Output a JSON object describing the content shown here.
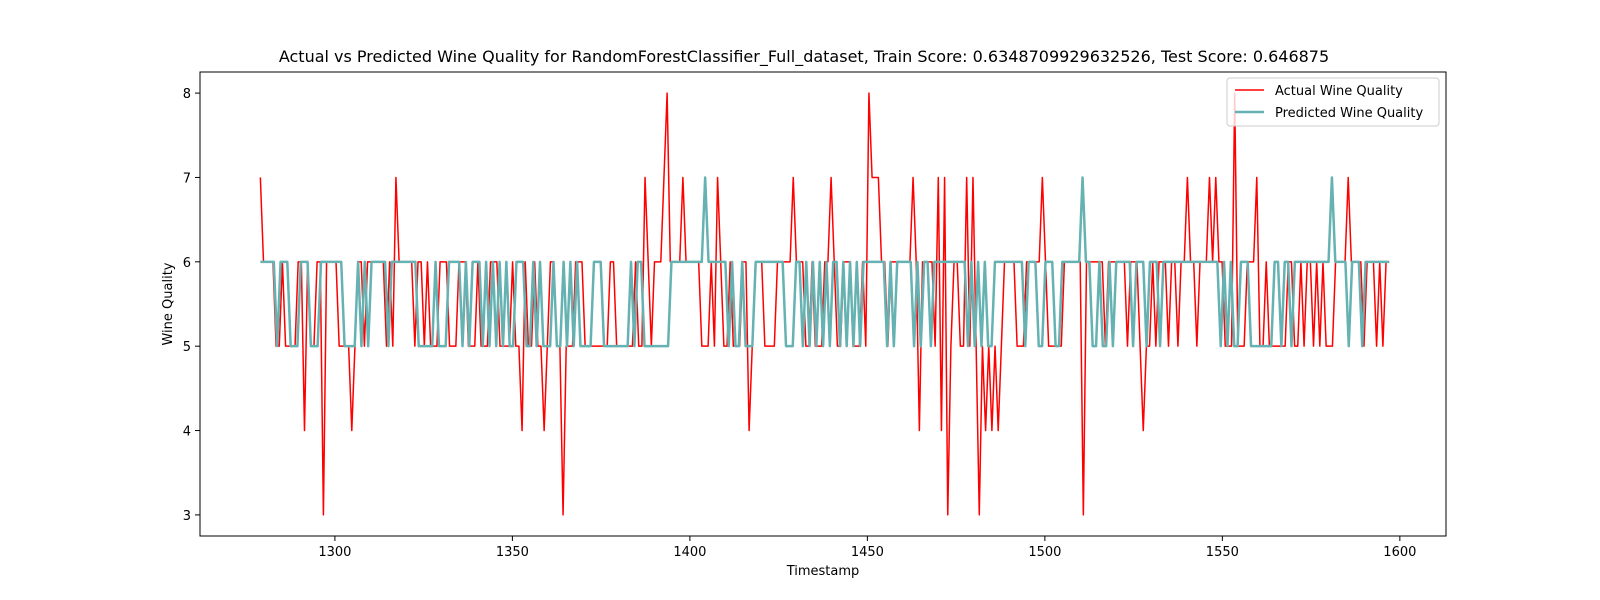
{
  "chart_data": {
    "type": "line",
    "title": "Actual vs Predicted Wine Quality for RandomForestClassifier_Full_dataset, Train Score: 0.6348709929632526, Test Score: 0.646875",
    "xlabel": "Timestamp",
    "ylabel": "Wine Quality",
    "xlim": [
      1262,
      1613
    ],
    "ylim": [
      2.75,
      8.25
    ],
    "xticks": [
      1300,
      1350,
      1400,
      1450,
      1500,
      1550,
      1600
    ],
    "yticks": [
      3,
      4,
      5,
      6,
      7,
      8
    ],
    "grid": false,
    "legend_position": "top-right",
    "x_start": 1279,
    "x_end": 1597,
    "series": [
      {
        "name": "Actual Wine Quality",
        "color": "#ff0000",
        "values": [
          7,
          6,
          6,
          6,
          6,
          5,
          5,
          6,
          5,
          5,
          5,
          5,
          6,
          6,
          4,
          6,
          5,
          5,
          6,
          6,
          3,
          6,
          6,
          6,
          6,
          5,
          5,
          5,
          5,
          4,
          5,
          6,
          6,
          5,
          6,
          6,
          6,
          6,
          6,
          6,
          5,
          6,
          5,
          7,
          6,
          6,
          6,
          6,
          6,
          5,
          6,
          6,
          5,
          6,
          5,
          5,
          5,
          6,
          6,
          6,
          5,
          5,
          5,
          6,
          6,
          6,
          5,
          5,
          5,
          6,
          5,
          5,
          5,
          6,
          6,
          6,
          5,
          5,
          5,
          5,
          6,
          5,
          5,
          4,
          6,
          5,
          5,
          6,
          5,
          5,
          4,
          5,
          6,
          6,
          5,
          5,
          3,
          5,
          5,
          5,
          6,
          6,
          6,
          5,
          5,
          5,
          5,
          5,
          5,
          5,
          5,
          6,
          6,
          5,
          5,
          5,
          5,
          5,
          5,
          6,
          5,
          5,
          7,
          6,
          5,
          6,
          6,
          6,
          7,
          8,
          6,
          6,
          6,
          6,
          7,
          6,
          6,
          6,
          6,
          6,
          5,
          5,
          5,
          6,
          5,
          7,
          6,
          5,
          5,
          6,
          5,
          5,
          5,
          6,
          6,
          4,
          5,
          6,
          6,
          6,
          5,
          5,
          5,
          5,
          6,
          6,
          6,
          6,
          6,
          7,
          6,
          6,
          6,
          5,
          5,
          6,
          5,
          5,
          5,
          6,
          6,
          7,
          6,
          5,
          5,
          6,
          6,
          6,
          5,
          5,
          5,
          6,
          5,
          8,
          7,
          7,
          7,
          6,
          6,
          5,
          6,
          6,
          6,
          6,
          6,
          6,
          6,
          7,
          6,
          4,
          6,
          6,
          6,
          6,
          5,
          7,
          4,
          7,
          3,
          5,
          6,
          6,
          5,
          5,
          7,
          5,
          7,
          5,
          3,
          5,
          4,
          5,
          4,
          5,
          4,
          5,
          6,
          6,
          6,
          6,
          5,
          5,
          5,
          6,
          6,
          6,
          6,
          6,
          7,
          6,
          5,
          5,
          5,
          5,
          5,
          6,
          6,
          6,
          6,
          6,
          6,
          3,
          6,
          6,
          6,
          6,
          6,
          6,
          5,
          6,
          6,
          6,
          6,
          6,
          6,
          5,
          6,
          6,
          6,
          5,
          4,
          5,
          5,
          6,
          5,
          6,
          6,
          6,
          5,
          6,
          6,
          5,
          6,
          6,
          7,
          6,
          6,
          5,
          6,
          6,
          6,
          7,
          6,
          7,
          6,
          6,
          5,
          5,
          5,
          8,
          5,
          5,
          5,
          6,
          6,
          6,
          7,
          5,
          5,
          6,
          5,
          5,
          5,
          5,
          5,
          5,
          6,
          6,
          5,
          5,
          6,
          5,
          6,
          6,
          5,
          6,
          5,
          6,
          5,
          5,
          5,
          6,
          6,
          6,
          6,
          7,
          6,
          6,
          6,
          6,
          5,
          6,
          6,
          6,
          5,
          6,
          5,
          6,
          6
        ]
      },
      {
        "name": "Predicted Wine Quality",
        "color": "#66b2b2",
        "values": [
          6,
          6,
          6,
          6,
          6,
          5,
          6,
          6,
          6,
          5,
          5,
          5,
          6,
          6,
          6,
          5,
          5,
          5,
          6,
          6,
          6,
          6,
          6,
          6,
          6,
          5,
          5,
          5,
          5,
          6,
          5,
          6,
          5,
          6,
          6,
          6,
          6,
          6,
          5,
          6,
          6,
          6,
          6,
          6,
          6,
          6,
          6,
          5,
          5,
          5,
          5,
          5,
          6,
          5,
          5,
          5,
          6,
          6,
          6,
          6,
          5,
          6,
          5,
          6,
          6,
          6,
          5,
          6,
          5,
          6,
          5,
          6,
          5,
          6,
          5,
          5,
          6,
          6,
          6,
          5,
          5,
          6,
          5,
          6,
          5,
          5,
          5,
          6,
          5,
          5,
          6,
          5,
          6,
          5,
          6,
          5,
          5,
          5,
          5,
          6,
          6,
          6,
          5,
          5,
          5,
          5,
          5,
          5,
          5,
          5,
          6,
          5,
          6,
          6,
          5,
          5,
          5,
          5,
          5,
          5,
          5,
          5,
          6,
          6,
          6,
          6,
          6,
          6,
          6,
          6,
          6,
          6,
          7,
          6,
          6,
          6,
          6,
          6,
          6,
          5,
          6,
          5,
          5,
          6,
          5,
          5,
          5,
          6,
          6,
          6,
          6,
          6,
          6,
          6,
          6,
          6,
          5,
          5,
          5,
          6,
          6,
          5,
          6,
          5,
          6,
          5,
          6,
          5,
          6,
          5,
          6,
          6,
          5,
          6,
          5,
          6,
          5,
          6,
          5,
          6,
          6,
          6,
          6,
          6,
          6,
          6,
          5,
          6,
          5,
          6,
          6,
          6,
          6,
          6,
          5,
          6,
          5,
          6,
          6,
          5,
          6,
          6,
          6,
          6,
          6,
          6,
          6,
          6,
          6,
          6,
          5,
          6,
          5,
          6,
          5,
          6,
          5,
          5,
          6,
          6,
          6,
          6,
          6,
          6,
          6,
          6,
          6,
          5,
          6,
          6,
          6,
          5,
          5,
          6,
          6,
          6,
          5,
          5,
          6,
          6,
          6,
          6,
          6,
          6,
          7,
          6,
          6,
          5,
          5,
          6,
          5,
          5,
          6,
          5,
          6,
          6,
          6,
          6,
          6,
          5,
          6,
          6,
          6,
          5,
          6,
          6,
          6,
          5,
          6,
          6,
          6,
          6,
          6,
          6,
          6,
          6,
          6,
          6,
          6,
          6,
          6,
          6,
          6,
          6,
          6,
          5,
          6,
          5,
          6,
          5,
          5,
          6,
          6,
          6,
          5,
          5,
          5,
          5,
          5,
          5,
          5,
          6,
          6,
          5,
          6,
          6,
          5,
          6,
          6,
          6,
          6,
          6,
          6,
          6,
          6,
          6,
          6,
          6,
          7,
          6,
          6,
          6,
          6,
          5,
          6,
          6,
          6,
          5,
          6,
          6,
          6,
          6,
          6,
          6,
          6,
          6
        ]
      }
    ]
  }
}
